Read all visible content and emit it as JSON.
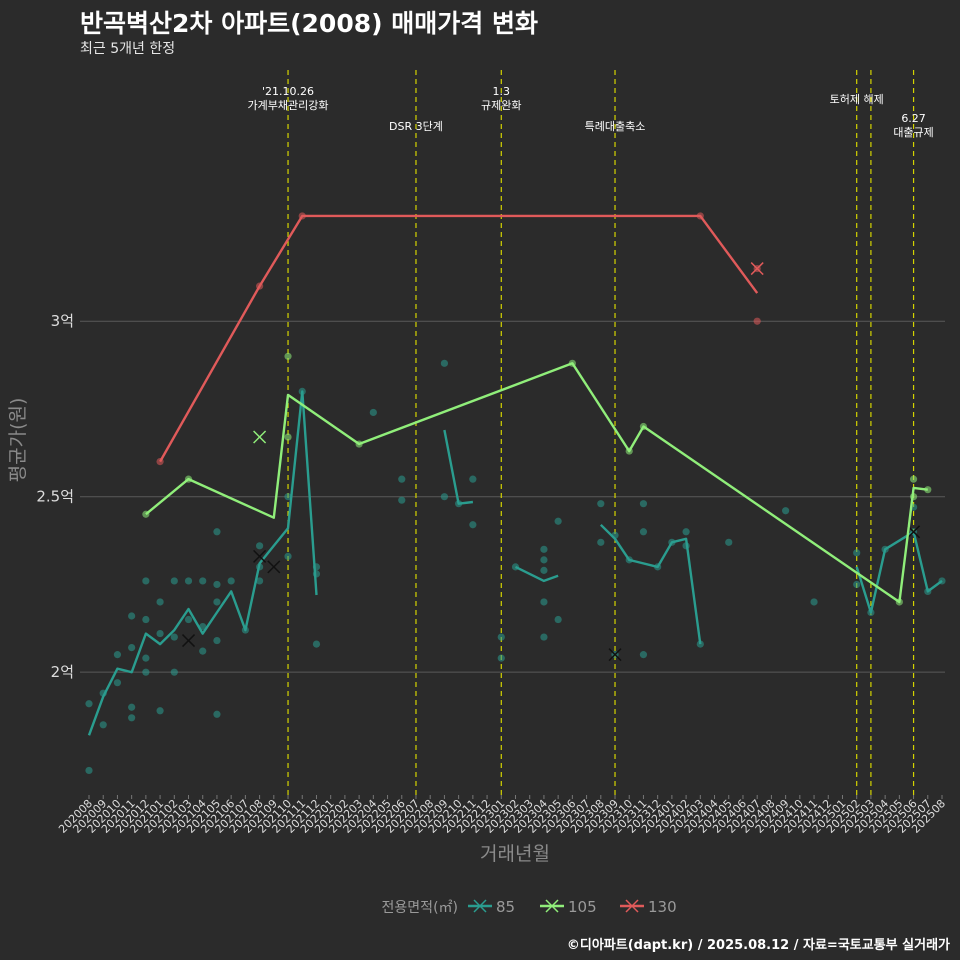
{
  "header": {
    "title": "반곡벽산2차 아파트(2008) 매매가격 변화",
    "subtitle": "최근 5개년 한정"
  },
  "caption": "©디아파트(dapt.kr) / 2025.08.12 / 자료=국토교통부 실거래가",
  "colors": {
    "background": "#2b2b2b",
    "grid": "#5a5a5a",
    "event_line": "#d4d400",
    "s85": "#2a9d8f",
    "s105": "#90ee7a",
    "s130": "#e05a5a"
  },
  "chart_data": {
    "type": "line",
    "xlabel": "거래년월",
    "ylabel": "평균가(원)",
    "ylim": [
      1.65,
      3.75
    ],
    "yticks": [
      {
        "value": 2.0,
        "label": "2억"
      },
      {
        "value": 2.5,
        "label": "2.5억"
      },
      {
        "value": 3.0,
        "label": "3억"
      }
    ],
    "categories": [
      "202008",
      "202009",
      "202010",
      "202011",
      "202012",
      "202101",
      "202102",
      "202103",
      "202104",
      "202105",
      "202106",
      "202107",
      "202108",
      "202109",
      "202110",
      "202111",
      "202112",
      "202201",
      "202202",
      "202203",
      "202204",
      "202205",
      "202206",
      "202207",
      "202208",
      "202209",
      "202210",
      "202211",
      "202212",
      "202301",
      "202302",
      "202303",
      "202304",
      "202305",
      "202306",
      "202307",
      "202308",
      "202309",
      "202310",
      "202311",
      "202312",
      "202401",
      "202402",
      "202403",
      "202404",
      "202405",
      "202406",
      "202407",
      "202408",
      "202409",
      "202410",
      "202411",
      "202412",
      "202501",
      "202502",
      "202503",
      "202504",
      "202505",
      "202506",
      "202507",
      "202508"
    ],
    "grid": true,
    "legend": {
      "title": "전용면적(㎡)",
      "position": "bottom",
      "entries": [
        "85",
        "105",
        "130"
      ]
    },
    "events": [
      {
        "x": "202110",
        "label": "'21.10.26\n가계부채관리강화",
        "label_pos": "top"
      },
      {
        "x": "202207",
        "label": "DSR 3단계",
        "label_pos": "mid"
      },
      {
        "x": "202301",
        "label": "1.3\n규제완화",
        "label_pos": "top"
      },
      {
        "x": "202309",
        "label": "특례대출축소",
        "label_pos": "mid"
      },
      {
        "x": "202502",
        "label": "토허제 해제",
        "label_pos": "top2"
      },
      {
        "x": "202503",
        "label": "",
        "label_pos": "none"
      },
      {
        "x": "202506",
        "label": "6.27\n대출규제",
        "label_pos": "low"
      }
    ],
    "series": [
      {
        "name": "85",
        "color": "#2a9d8f",
        "lines": [
          [
            [
              "202008",
              1.82
            ],
            [
              "202009",
              1.93
            ],
            [
              "202010",
              2.01
            ],
            [
              "202011",
              2.0
            ],
            [
              "202012",
              2.11
            ],
            [
              "202101",
              2.08
            ],
            [
              "202102",
              2.12
            ],
            [
              "202103",
              2.18
            ],
            [
              "202104",
              2.11
            ],
            [
              "202105",
              2.17
            ],
            [
              "202106",
              2.23
            ],
            [
              "202107",
              2.12
            ],
            [
              "202108",
              2.31
            ],
            [
              "202109",
              2.36
            ],
            [
              "202110",
              2.41
            ],
            [
              "202111",
              2.8
            ],
            [
              "202112",
              2.22
            ]
          ],
          [
            [
              "202209",
              2.69
            ],
            [
              "202210",
              2.48
            ],
            [
              "202211",
              2.485
            ]
          ],
          [
            [
              "202302",
              2.3
            ],
            [
              "202303",
              2.28
            ],
            [
              "202304",
              2.26
            ],
            [
              "202305",
              2.275
            ]
          ],
          [
            [
              "202308",
              2.42
            ],
            [
              "202309",
              2.38
            ],
            [
              "202310",
              2.32
            ],
            [
              "202312",
              2.3
            ],
            [
              "202401",
              2.37
            ],
            [
              "202402",
              2.38
            ],
            [
              "202403",
              2.08
            ]
          ],
          [
            [
              "202502",
              2.3
            ],
            [
              "202503",
              2.17
            ],
            [
              "202504",
              2.35
            ],
            [
              "202506",
              2.4
            ],
            [
              "202507",
              2.23
            ],
            [
              "202508",
              2.26
            ]
          ]
        ],
        "points": [
          [
            "202008",
            1.91
          ],
          [
            "202008",
            1.72
          ],
          [
            "202009",
            1.94
          ],
          [
            "202009",
            1.85
          ],
          [
            "202010",
            2.05
          ],
          [
            "202010",
            1.97
          ],
          [
            "202011",
            2.16
          ],
          [
            "202011",
            2.07
          ],
          [
            "202011",
            1.9
          ],
          [
            "202011",
            1.87
          ],
          [
            "202012",
            2.26
          ],
          [
            "202012",
            2.15
          ],
          [
            "202012",
            2.04
          ],
          [
            "202012",
            2.0
          ],
          [
            "202101",
            2.2
          ],
          [
            "202101",
            2.11
          ],
          [
            "202101",
            1.89
          ],
          [
            "202102",
            2.26
          ],
          [
            "202102",
            2.1
          ],
          [
            "202102",
            2.0
          ],
          [
            "202103",
            2.26
          ],
          [
            "202103",
            2.15
          ],
          [
            "202104",
            2.26
          ],
          [
            "202104",
            2.13
          ],
          [
            "202104",
            2.06
          ],
          [
            "202105",
            2.4
          ],
          [
            "202105",
            2.25
          ],
          [
            "202105",
            2.2
          ],
          [
            "202105",
            2.09
          ],
          [
            "202105",
            1.88
          ],
          [
            "202106",
            2.26
          ],
          [
            "202107",
            2.12
          ],
          [
            "202108",
            2.36
          ],
          [
            "202108",
            2.3
          ],
          [
            "202108",
            2.26
          ],
          [
            "202110",
            2.5
          ],
          [
            "202110",
            2.33
          ],
          [
            "202111",
            2.8
          ],
          [
            "202112",
            2.3
          ],
          [
            "202112",
            2.28
          ],
          [
            "202112",
            2.08
          ],
          [
            "202204",
            2.74
          ],
          [
            "202206",
            2.55
          ],
          [
            "202206",
            2.49
          ],
          [
            "202209",
            2.88
          ],
          [
            "202209",
            2.5
          ],
          [
            "202210",
            2.48
          ],
          [
            "202211",
            2.55
          ],
          [
            "202211",
            2.42
          ],
          [
            "202301",
            2.1
          ],
          [
            "202301",
            2.04
          ],
          [
            "202302",
            2.3
          ],
          [
            "202304",
            2.35
          ],
          [
            "202304",
            2.32
          ],
          [
            "202304",
            2.29
          ],
          [
            "202304",
            2.2
          ],
          [
            "202304",
            2.1
          ],
          [
            "202305",
            2.43
          ],
          [
            "202305",
            2.15
          ],
          [
            "202308",
            2.48
          ],
          [
            "202308",
            2.37
          ],
          [
            "202309",
            2.39
          ],
          [
            "202309",
            2.05
          ],
          [
            "202310",
            2.32
          ],
          [
            "202311",
            2.48
          ],
          [
            "202311",
            2.4
          ],
          [
            "202311",
            2.05
          ],
          [
            "202312",
            2.3
          ],
          [
            "202401",
            2.37
          ],
          [
            "202402",
            2.4
          ],
          [
            "202402",
            2.36
          ],
          [
            "202403",
            2.08
          ],
          [
            "202405",
            2.37
          ],
          [
            "202409",
            2.46
          ],
          [
            "202411",
            2.2
          ],
          [
            "202502",
            2.34
          ],
          [
            "202502",
            2.25
          ],
          [
            "202503",
            2.17
          ],
          [
            "202504",
            2.35
          ],
          [
            "202506",
            2.47
          ],
          [
            "202506",
            2.4
          ],
          [
            "202507",
            2.23
          ],
          [
            "202508",
            2.26
          ]
        ],
        "cancelled": [
          [
            "202103",
            2.09
          ],
          [
            "202108",
            2.33
          ],
          [
            "202109",
            2.3
          ],
          [
            "202309",
            2.05
          ],
          [
            "202506",
            2.4
          ]
        ]
      },
      {
        "name": "105",
        "color": "#90ee7a",
        "lines": [
          [
            [
              "202012",
              2.45
            ],
            [
              "202103",
              2.55
            ],
            [
              "202109",
              2.44
            ],
            [
              "202110",
              2.79
            ],
            [
              "202203",
              2.65
            ],
            [
              "202306",
              2.88
            ],
            [
              "202310",
              2.63
            ],
            [
              "202311",
              2.7
            ],
            [
              "202505",
              2.2
            ],
            [
              "202506",
              2.525
            ],
            [
              "202507",
              2.52
            ]
          ]
        ],
        "points": [
          [
            "202012",
            2.45
          ],
          [
            "202103",
            2.55
          ],
          [
            "202110",
            2.9
          ],
          [
            "202110",
            2.67
          ],
          [
            "202203",
            2.65
          ],
          [
            "202306",
            2.88
          ],
          [
            "202310",
            2.63
          ],
          [
            "202311",
            2.7
          ],
          [
            "202505",
            2.2
          ],
          [
            "202506",
            2.55
          ],
          [
            "202506",
            2.5
          ],
          [
            "202507",
            2.52
          ]
        ],
        "cancelled": [
          [
            "202108",
            2.67
          ]
        ]
      },
      {
        "name": "130",
        "color": "#e05a5a",
        "lines": [
          [
            [
              "202101",
              2.6
            ],
            [
              "202108",
              3.1
            ],
            [
              "202111",
              3.3
            ],
            [
              "202403",
              3.3
            ],
            [
              "202407",
              3.08
            ]
          ]
        ],
        "points": [
          [
            "202101",
            2.6
          ],
          [
            "202108",
            3.1
          ],
          [
            "202111",
            3.3
          ],
          [
            "202403",
            3.3
          ],
          [
            "202407",
            3.15
          ],
          [
            "202407",
            3.0
          ]
        ],
        "cancelled": [
          [
            "202407",
            3.15
          ]
        ]
      }
    ]
  }
}
